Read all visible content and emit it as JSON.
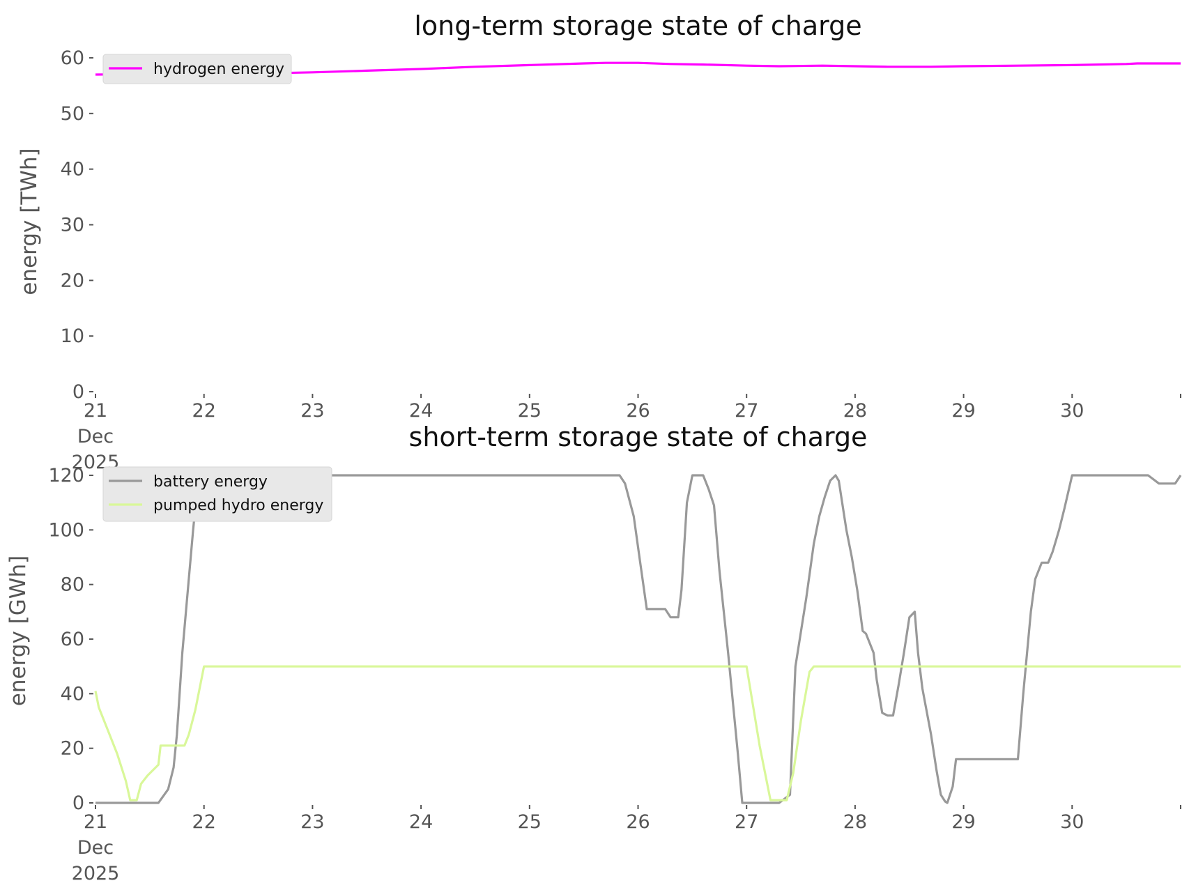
{
  "chart_data": [
    {
      "type": "line",
      "title": "long-term storage state of charge",
      "ylabel": "energy [TWh]",
      "xlabel": "",
      "xlim": [
        21,
        31
      ],
      "ylim": [
        0,
        60
      ],
      "y_ticks": [
        0,
        10,
        20,
        30,
        40,
        50,
        60
      ],
      "x_ticks": [
        21,
        22,
        23,
        24,
        25,
        26,
        27,
        28,
        29,
        30,
        31
      ],
      "x_tick_labels": [
        [
          "21",
          "Dec",
          "2025"
        ],
        [
          "22"
        ],
        [
          "23"
        ],
        [
          "24"
        ],
        [
          "25"
        ],
        [
          "26"
        ],
        [
          "27"
        ],
        [
          "28"
        ],
        [
          "29"
        ],
        [
          "30"
        ],
        [
          ""
        ]
      ],
      "grid": false,
      "legend_position": "top-left",
      "series": [
        {
          "name": "hydrogen energy",
          "color": "#ff00ff",
          "x": [
            21,
            21.5,
            22,
            22.5,
            23,
            23.5,
            24,
            24.5,
            25,
            25.5,
            25.7,
            26,
            26.3,
            26.6,
            27,
            27.3,
            27.7,
            28,
            28.3,
            28.7,
            29,
            29.5,
            30,
            30.5,
            30.6,
            31
          ],
          "y": [
            57.0,
            57.1,
            57.2,
            57.2,
            57.4,
            57.7,
            58.0,
            58.4,
            58.7,
            59.0,
            59.1,
            59.1,
            58.9,
            58.8,
            58.6,
            58.5,
            58.6,
            58.5,
            58.4,
            58.4,
            58.5,
            58.6,
            58.7,
            58.9,
            59.0,
            59.0
          ]
        }
      ]
    },
    {
      "type": "line",
      "title": "short-term storage state of charge",
      "ylabel": "energy [GWh]",
      "xlabel": "",
      "xlim": [
        21,
        31
      ],
      "ylim": [
        0,
        120
      ],
      "y_ticks": [
        0,
        20,
        40,
        60,
        80,
        100,
        120
      ],
      "x_ticks": [
        21,
        22,
        23,
        24,
        25,
        26,
        27,
        28,
        29,
        30,
        31
      ],
      "x_tick_labels": [
        [
          "21",
          "Dec",
          "2025"
        ],
        [
          "22"
        ],
        [
          "23"
        ],
        [
          "24"
        ],
        [
          "25"
        ],
        [
          "26"
        ],
        [
          "27"
        ],
        [
          "28"
        ],
        [
          "29"
        ],
        [
          "30"
        ],
        [
          ""
        ]
      ],
      "grid": false,
      "legend_position": "top-left",
      "series": [
        {
          "name": "battery energy",
          "color": "#999999",
          "x": [
            21,
            21.58,
            21.67,
            21.72,
            21.75,
            21.8,
            21.9,
            21.95,
            22,
            23,
            24,
            25,
            25.83,
            25.88,
            25.96,
            26.02,
            26.08,
            26.25,
            26.3,
            26.37,
            26.4,
            26.45,
            26.5,
            26.55,
            26.6,
            26.65,
            26.7,
            26.75,
            26.83,
            26.92,
            26.96,
            27,
            27.1,
            27.3,
            27.4,
            27.45,
            27.55,
            27.62,
            27.67,
            27.72,
            27.77,
            27.82,
            27.85,
            27.92,
            27.97,
            28.02,
            28.07,
            28.1,
            28.17,
            28.2,
            28.25,
            28.3,
            28.35,
            28.4,
            28.45,
            28.5,
            28.55,
            28.58,
            28.62,
            28.7,
            28.75,
            28.79,
            28.83,
            28.85,
            28.9,
            28.93,
            29,
            29.5,
            29.55,
            29.62,
            29.66,
            29.72,
            29.78,
            29.82,
            29.88,
            29.93,
            30,
            30,
            30.5,
            30.7,
            30.8,
            30.95,
            31
          ],
          "y": [
            0,
            0,
            5,
            13,
            25,
            55,
            100,
            120,
            120,
            120,
            120,
            120,
            120,
            117,
            105,
            88,
            71,
            71,
            68,
            68,
            78,
            110,
            120,
            120,
            120,
            115,
            109,
            85,
            55,
            18,
            0,
            0,
            0,
            0,
            3,
            50,
            75,
            95,
            105,
            112,
            118,
            120,
            118,
            100,
            90,
            78,
            63,
            62,
            55,
            45,
            33,
            32,
            32,
            43,
            55,
            68,
            70,
            55,
            42,
            25,
            12,
            3,
            0.5,
            0,
            6,
            16,
            16,
            16,
            40,
            70,
            82,
            88,
            88,
            92,
            100,
            108,
            120,
            120,
            120,
            120,
            117,
            117,
            120
          ]
        },
        {
          "name": "pumped hydro energy",
          "color": "#d9f799",
          "x": [
            21,
            21.03,
            21.1,
            21.2,
            21.28,
            21.32,
            21.38,
            21.42,
            21.48,
            21.53,
            21.58,
            21.6,
            21.82,
            21.86,
            21.92,
            21.98,
            22,
            23,
            24,
            25,
            26,
            26.96,
            27,
            27.12,
            27.22,
            27.3,
            27.37,
            27.43,
            27.5,
            27.58,
            27.62,
            28,
            29,
            30,
            31
          ],
          "y": [
            41,
            35,
            28,
            18,
            8,
            1,
            1,
            7,
            10,
            12,
            14,
            21,
            21,
            25,
            34,
            46,
            50,
            50,
            50,
            50,
            50,
            50,
            50,
            21,
            1,
            1,
            1,
            11,
            30,
            48,
            50,
            50,
            50,
            50,
            50
          ]
        }
      ]
    }
  ]
}
